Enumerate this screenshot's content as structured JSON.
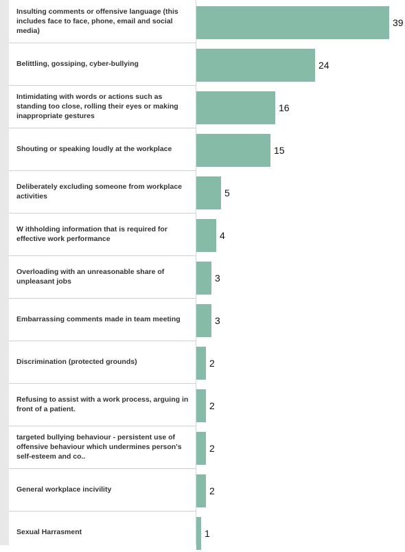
{
  "chart_data": {
    "type": "bar",
    "orientation": "horizontal",
    "categories": [
      "Insulting comments or offensive language (this includes face to face, phone, email and social media)",
      "Belittling, gossiping, cyber-bullying",
      "Intimidating with words or actions such as standing too close, rolling their eyes or making inappropriate gestures",
      "Shouting or speaking loudly at the workplace",
      "Deliberately excluding someone from workplace activities",
      "W ithholding information that is required for effective work performance",
      "Overloading with an unreasonable share of unpleasant jobs",
      "Embarrassing comments made in team meeting",
      "Discrimination (protected grounds)",
      "Refusing to assist with a work process, arguing in front of a patient.",
      "targeted bullying behaviour - persistent use of offensive behaviour which undermines person's self-esteem and co..",
      "General workplace incivility",
      "Sexual Harrasment"
    ],
    "values": [
      39,
      24,
      16,
      15,
      5,
      4,
      3,
      3,
      2,
      2,
      2,
      2,
      1
    ],
    "data_labels": [
      "39",
      "24",
      "16",
      "15",
      "5",
      "4",
      "3",
      "3",
      "2",
      "2",
      "2",
      "2",
      "1"
    ],
    "bar_color": "#86bba7",
    "title": "",
    "xlabel": "",
    "ylabel": "",
    "xlim": [
      0,
      40
    ],
    "grid": false,
    "legend": "none"
  }
}
